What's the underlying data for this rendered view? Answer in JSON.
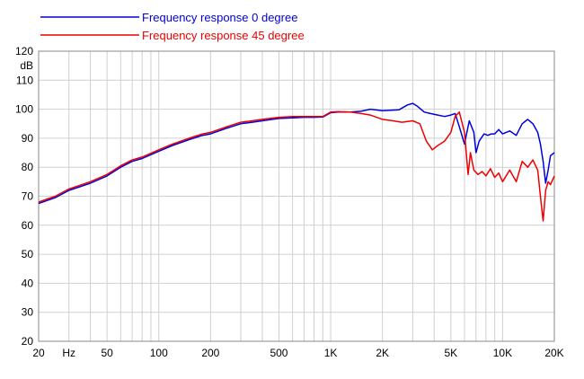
{
  "chart_data": {
    "type": "line",
    "xscale": "log",
    "xlim": [
      20,
      20000
    ],
    "ylim": [
      20,
      120
    ],
    "ylabel": "dB",
    "grid": true,
    "legend_position": "top-left",
    "x_tick_labels": [
      {
        "value": 20,
        "label": "20"
      },
      {
        "value": 30,
        "label": "Hz"
      },
      {
        "value": 50,
        "label": "50"
      },
      {
        "value": 100,
        "label": "100"
      },
      {
        "value": 200,
        "label": "200"
      },
      {
        "value": 500,
        "label": "500"
      },
      {
        "value": 1000,
        "label": "1K"
      },
      {
        "value": 2000,
        "label": "2K"
      },
      {
        "value": 5000,
        "label": "5K"
      },
      {
        "value": 10000,
        "label": "10K"
      },
      {
        "value": 20000,
        "label": "20K"
      }
    ],
    "y_ticks": [
      20,
      30,
      40,
      50,
      60,
      70,
      80,
      90,
      100,
      110,
      120
    ],
    "series": [
      {
        "name": "Frequency response 0 degree",
        "color": "#0000dd",
        "x": [
          20,
          25,
          30,
          40,
          50,
          60,
          70,
          80,
          100,
          120,
          150,
          180,
          200,
          250,
          300,
          350,
          400,
          500,
          600,
          700,
          800,
          900,
          1000,
          1100,
          1300,
          1500,
          1700,
          2000,
          2500,
          2800,
          3000,
          3200,
          3500,
          3800,
          4200,
          4600,
          5000,
          5300,
          5600,
          6000,
          6400,
          6800,
          7000,
          7300,
          7800,
          8200,
          8600,
          9000,
          9500,
          10000,
          11000,
          12000,
          13000,
          14000,
          15000,
          16000,
          16600,
          17200,
          17800,
          18400,
          19000,
          20000
        ],
        "y": [
          67.5,
          69.5,
          72,
          74.5,
          77,
          80,
          82,
          83,
          85.5,
          87.5,
          89.5,
          91,
          91.5,
          93.5,
          95,
          95.5,
          96,
          96.8,
          97,
          97.2,
          97.2,
          97.3,
          98.8,
          99,
          99,
          99.3,
          100,
          99.5,
          99.8,
          101.5,
          102,
          101,
          99,
          98.5,
          98,
          97.5,
          98,
          98.5,
          94,
          88,
          96,
          92,
          85,
          89,
          91.5,
          91,
          91.5,
          91.5,
          93,
          91.5,
          92.5,
          91,
          95,
          96.5,
          95,
          92,
          88,
          82,
          74.5,
          79,
          84,
          85
        ]
      },
      {
        "name": "Frequency response 45 degree",
        "color": "#ee0000",
        "x": [
          20,
          25,
          30,
          40,
          50,
          60,
          70,
          80,
          100,
          120,
          150,
          180,
          200,
          250,
          300,
          350,
          400,
          500,
          600,
          700,
          800,
          900,
          1000,
          1100,
          1300,
          1500,
          1700,
          2000,
          2300,
          2600,
          3000,
          3300,
          3600,
          3900,
          4200,
          4600,
          5000,
          5300,
          5600,
          6000,
          6300,
          6500,
          6800,
          7200,
          7600,
          8000,
          8500,
          9000,
          9500,
          10000,
          11000,
          12000,
          13000,
          14000,
          15000,
          16000,
          16600,
          17200,
          17800,
          18400,
          19000,
          20000
        ],
        "y": [
          68,
          70,
          72.5,
          75,
          77.5,
          80.5,
          82.5,
          83.5,
          86,
          88,
          90,
          91.5,
          92,
          94,
          95.5,
          96,
          96.5,
          97.2,
          97.5,
          97.5,
          97.5,
          97.5,
          99,
          99.2,
          99,
          98.5,
          98,
          96.5,
          96,
          95.5,
          96,
          95,
          89,
          86,
          87.5,
          89,
          92,
          97.5,
          99,
          92,
          77.5,
          85,
          79,
          77.5,
          78.5,
          77,
          79.5,
          76.5,
          78,
          75,
          79,
          75,
          82,
          80,
          82.5,
          79,
          70,
          61.5,
          72,
          75,
          74,
          77
        ]
      }
    ]
  }
}
